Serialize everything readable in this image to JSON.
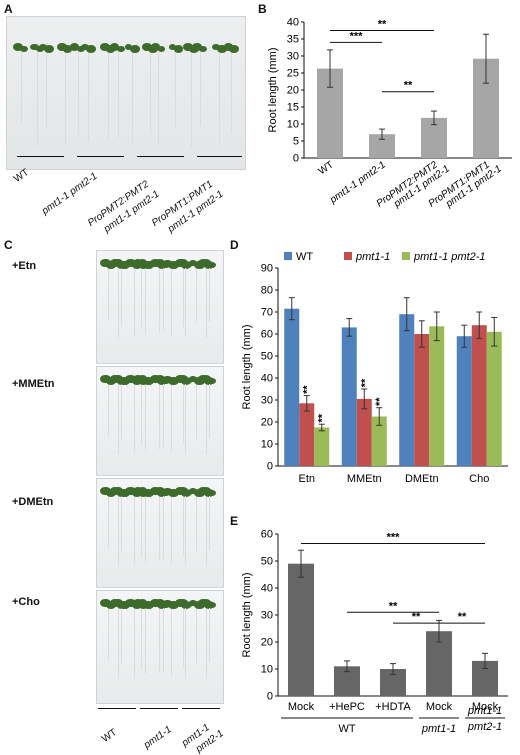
{
  "panels": {
    "A": "A",
    "B": "B",
    "C": "C",
    "D": "D",
    "E": "E"
  },
  "panelA": {
    "labels": [
      "WT",
      "pmt1-1 pmt2-1",
      "ProPMT2:PMT2",
      "pmt1-1 pmt2-1",
      "ProPMT1:PMT1",
      "pmt1-1 pmt2-1"
    ]
  },
  "panelC": {
    "treatments": [
      "+Etn",
      "+MMEtn",
      "+DMEtn",
      "+Cho"
    ],
    "labels": [
      "WT",
      "pmt1-1",
      "pmt1-1",
      "pmt2-1"
    ]
  },
  "chart_data": [
    {
      "id": "B",
      "type": "bar",
      "ylabel": "Root length (mm)",
      "ylim": [
        0,
        40
      ],
      "yticks": [
        0,
        5,
        10,
        15,
        20,
        25,
        30,
        35,
        40
      ],
      "categories": [
        "WT",
        "pmt1-1 pmt2-1",
        "ProPMT2:PMT2 pmt1-1 pmt2-1",
        "ProPMT1:PMT1 pmt1-1 pmt2-1"
      ],
      "tick_labels": [
        [
          "WT"
        ],
        [
          "pmt1-1 pmt2-1"
        ],
        [
          "ProPMT2:PMT2",
          "pmt1-1 pmt2-1"
        ],
        [
          "ProPMT1:PMT1",
          "pmt1-1 pmt2-1"
        ]
      ],
      "values": [
        26.3,
        7.0,
        11.8,
        29.2
      ],
      "errors": [
        5.5,
        1.5,
        2.0,
        7.2
      ],
      "bar_color": "#a6a6a6",
      "significance": [
        {
          "from": 0,
          "to": 2,
          "y": 37.5,
          "label": "**"
        },
        {
          "from": 0,
          "to": 1,
          "y": 34.0,
          "label": "***"
        },
        {
          "from": 1,
          "to": 2,
          "y": 19.5,
          "label": "**"
        }
      ]
    },
    {
      "id": "D",
      "type": "bar",
      "ylabel": "Root length (mm)",
      "ylim": [
        0,
        90
      ],
      "yticks": [
        0,
        10,
        20,
        30,
        40,
        50,
        60,
        70,
        80,
        90
      ],
      "categories": [
        "Etn",
        "MMEtn",
        "DMEtn",
        "Cho"
      ],
      "series": [
        {
          "name": "WT",
          "values": [
            71.5,
            63.0,
            69.0,
            59.0
          ],
          "errors": [
            5.0,
            4.0,
            7.5,
            5.0
          ],
          "color": "#4f81bd",
          "stars": [
            "",
            "",
            "",
            ""
          ]
        },
        {
          "name": "pmt1-1",
          "values": [
            28.5,
            30.5,
            60.0,
            64.0
          ],
          "errors": [
            3.5,
            4.5,
            6.0,
            6.0
          ],
          "color": "#c0504d",
          "stars": [
            "**",
            "**",
            "",
            ""
          ]
        },
        {
          "name": "pmt1-1 pmt2-1",
          "values": [
            17.5,
            22.5,
            63.5,
            61.0
          ],
          "errors": [
            1.5,
            4.0,
            6.5,
            6.5
          ],
          "color": "#9bbb59",
          "stars": [
            "**",
            "**",
            "",
            ""
          ]
        }
      ],
      "legend": "top"
    },
    {
      "id": "E",
      "type": "bar",
      "ylabel": "Root length (mm)",
      "ylim": [
        0,
        60
      ],
      "yticks": [
        0,
        10,
        20,
        30,
        40,
        50,
        60
      ],
      "categories": [
        "Mock",
        "+HePC",
        "+HDTA",
        "Mock",
        "Mock"
      ],
      "values": [
        49.0,
        11.0,
        10.0,
        24.0,
        13.0
      ],
      "errors": [
        5.0,
        2.0,
        2.0,
        4.0,
        2.8
      ],
      "bar_color": "#666666",
      "groups": [
        {
          "label": "WT",
          "from": 0,
          "to": 2
        },
        {
          "label": "pmt1-1",
          "from": 3,
          "to": 3
        },
        {
          "label": "pmt1-1 pmt2-1",
          "from": 4,
          "to": 4
        }
      ],
      "significance": [
        {
          "from": 0,
          "to": 4,
          "y": 56.5,
          "label": "***"
        },
        {
          "from": 1,
          "to": 3,
          "y": 31.0,
          "label": "**"
        },
        {
          "from": 2,
          "to": 3,
          "y": 27.0,
          "label": "**"
        },
        {
          "from": 3,
          "to": 4,
          "y": 27.0,
          "label": "**"
        }
      ]
    }
  ]
}
